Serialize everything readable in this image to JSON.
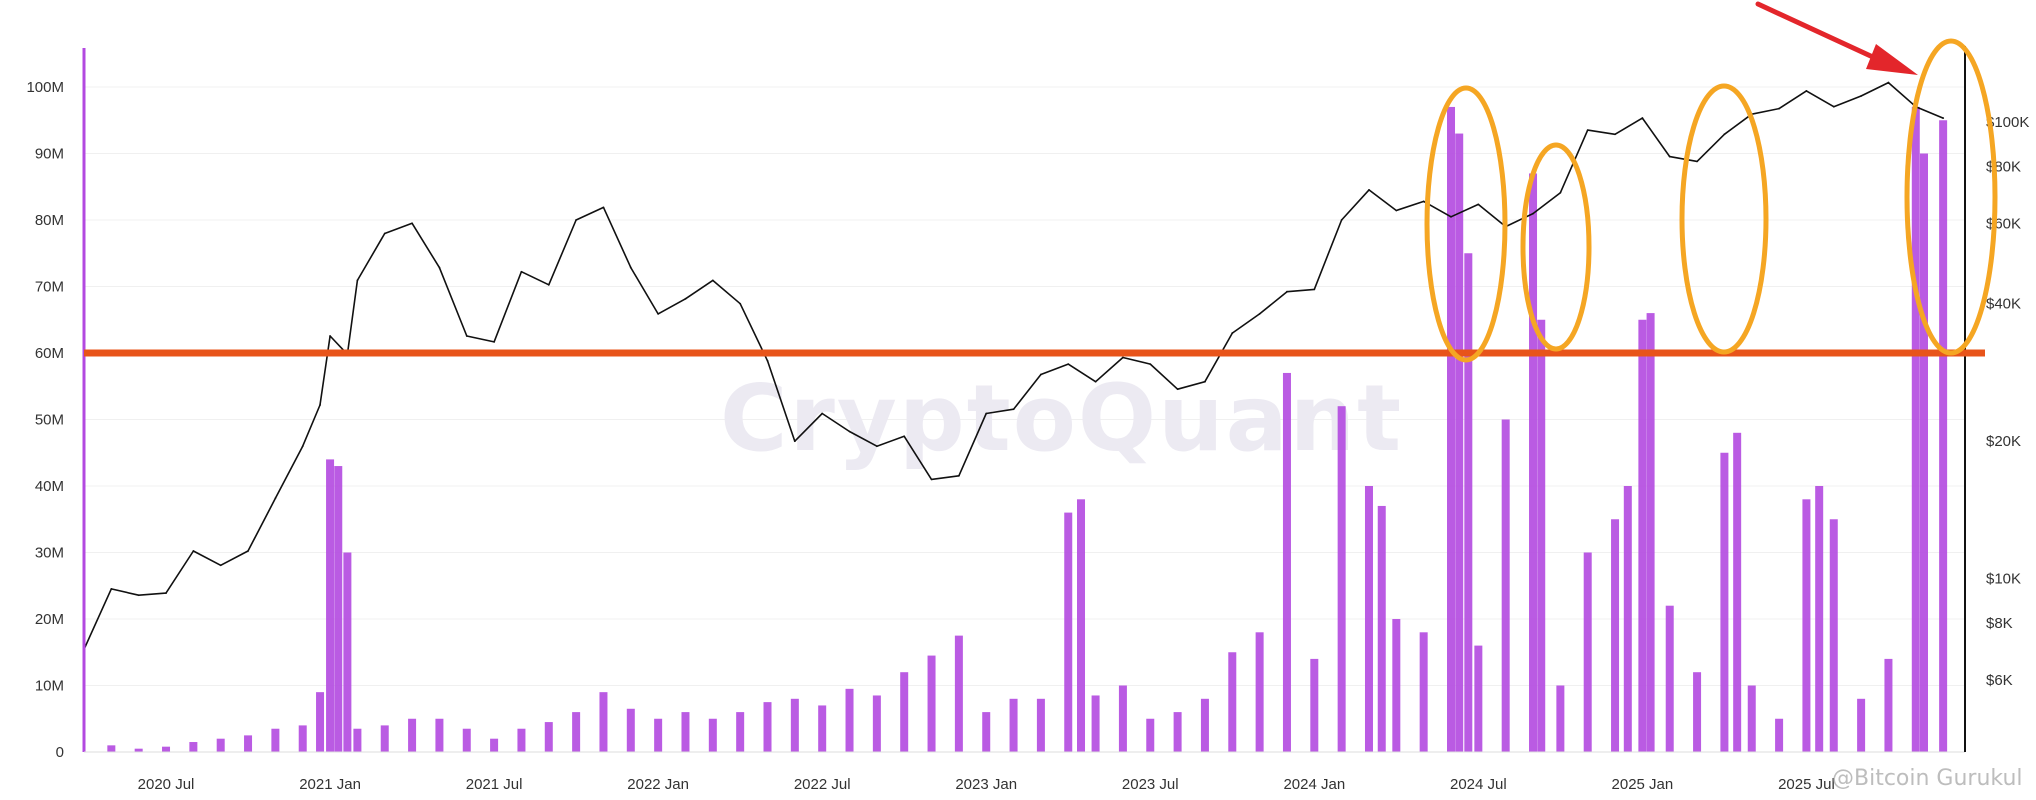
{
  "chart_data": {
    "type": "bar",
    "title": "",
    "xlabel": "",
    "ylabel": "",
    "x_tick_labels": [
      "2020 Jul",
      "2021 Jan",
      "2021 Jul",
      "2022 Jan",
      "2022 Jul",
      "2023 Jan",
      "2023 Jul",
      "2024 Jan",
      "2024 Jul",
      "2025 Jan",
      "2025 Jul"
    ],
    "x_range": [
      "2020 Apr",
      "2025 Dec"
    ],
    "left_axis": {
      "ticks": [
        0,
        10000000,
        20000000,
        30000000,
        40000000,
        50000000,
        60000000,
        70000000,
        80000000,
        90000000,
        100000000
      ],
      "tick_labels": [
        "0",
        "10M",
        "20M",
        "30M",
        "40M",
        "50M",
        "60M",
        "70M",
        "80M",
        "90M",
        "100M"
      ],
      "ylim": [
        0,
        100000000
      ]
    },
    "right_axis": {
      "scale": "log",
      "ticks": [
        6000,
        8000,
        10000,
        20000,
        40000,
        60000,
        80000,
        100000
      ],
      "tick_labels": [
        "$6K",
        "$8K",
        "$10K",
        "$20K",
        "$40K",
        "$60K",
        "$80K",
        "$100K"
      ]
    },
    "reference_line": {
      "value": 60000000,
      "color": "#e8541a"
    },
    "grid": true,
    "series": [
      {
        "kind": "bar",
        "axis": "left",
        "color": "#b349e0",
        "points": [
          [
            "2020 Apr",
            0
          ],
          [
            "2020 May",
            1000000
          ],
          [
            "2020 Jun",
            500000
          ],
          [
            "2020 Jul",
            800000
          ],
          [
            "2020 Aug",
            1500000
          ],
          [
            "2020 Sep",
            2000000
          ],
          [
            "2020 Oct",
            2500000
          ],
          [
            "2020 Nov",
            3500000
          ],
          [
            "2020 Dec",
            4000000
          ],
          [
            "2020 Dec 20",
            9000000
          ],
          [
            "2021 Jan",
            44000000
          ],
          [
            "2021 Jan 10",
            43000000
          ],
          [
            "2021 Jan 20",
            30000000
          ],
          [
            "2021 Feb",
            3500000
          ],
          [
            "2021 Mar",
            4000000
          ],
          [
            "2021 Apr",
            5000000
          ],
          [
            "2021 May",
            5000000
          ],
          [
            "2021 Jun",
            3500000
          ],
          [
            "2021 Jul",
            2000000
          ],
          [
            "2021 Aug",
            3500000
          ],
          [
            "2021 Sep",
            4500000
          ],
          [
            "2021 Oct",
            6000000
          ],
          [
            "2021 Nov",
            9000000
          ],
          [
            "2021 Dec",
            6500000
          ],
          [
            "2022 Jan",
            5000000
          ],
          [
            "2022 Feb",
            6000000
          ],
          [
            "2022 Mar",
            5000000
          ],
          [
            "2022 Apr",
            6000000
          ],
          [
            "2022 May",
            7500000
          ],
          [
            "2022 Jun",
            8000000
          ],
          [
            "2022 Jul",
            7000000
          ],
          [
            "2022 Aug",
            9500000
          ],
          [
            "2022 Sep",
            8500000
          ],
          [
            "2022 Oct",
            12000000
          ],
          [
            "2022 Nov",
            14500000
          ],
          [
            "2022 Dec",
            17500000
          ],
          [
            "2023 Jan",
            6000000
          ],
          [
            "2023 Feb",
            8000000
          ],
          [
            "2023 Mar",
            8000000
          ],
          [
            "2023 Apr",
            36000000
          ],
          [
            "2023 Apr 15",
            38000000
          ],
          [
            "2023 May",
            8500000
          ],
          [
            "2023 Jun",
            10000000
          ],
          [
            "2023 Jul",
            5000000
          ],
          [
            "2023 Aug",
            6000000
          ],
          [
            "2023 Sep",
            8000000
          ],
          [
            "2023 Oct",
            15000000
          ],
          [
            "2023 Nov",
            18000000
          ],
          [
            "2023 Dec",
            57000000
          ],
          [
            "2024 Jan",
            14000000
          ],
          [
            "2024 Feb",
            52000000
          ],
          [
            "2024 Mar",
            40000000
          ],
          [
            "2024 Mar 15",
            37000000
          ],
          [
            "2024 Apr",
            20000000
          ],
          [
            "2024 May",
            18000000
          ],
          [
            "2024 Jun",
            97000000
          ],
          [
            "2024 Jun 10",
            93000000
          ],
          [
            "2024 Jun 20",
            75000000
          ],
          [
            "2024 Jul",
            16000000
          ],
          [
            "2024 Aug",
            50000000
          ],
          [
            "2024 Sep",
            87000000
          ],
          [
            "2024 Sep 10",
            65000000
          ],
          [
            "2024 Oct",
            10000000
          ],
          [
            "2024 Nov",
            30000000
          ],
          [
            "2024 Dec",
            35000000
          ],
          [
            "2024 Dec 15",
            40000000
          ],
          [
            "2025 Jan",
            65000000
          ],
          [
            "2025 Jan 10",
            66000000
          ],
          [
            "2025 Feb",
            22000000
          ],
          [
            "2025 Mar",
            12000000
          ],
          [
            "2025 Apr",
            45000000
          ],
          [
            "2025 Apr 15",
            48000000
          ],
          [
            "2025 May",
            10000000
          ],
          [
            "2025 Jun",
            5000000
          ],
          [
            "2025 Jul",
            38000000
          ],
          [
            "2025 Jul 15",
            40000000
          ],
          [
            "2025 Aug",
            35000000
          ],
          [
            "2025 Sep",
            8000000
          ],
          [
            "2025 Oct",
            14000000
          ],
          [
            "2025 Nov",
            97000000
          ],
          [
            "2025 Nov 10",
            90000000
          ],
          [
            "2025 Dec",
            95000000
          ]
        ]
      },
      {
        "kind": "line",
        "axis": "right",
        "color": "#111111",
        "points": [
          [
            "2020 Apr",
            7000
          ],
          [
            "2020 May",
            9500
          ],
          [
            "2020 Jun",
            9200
          ],
          [
            "2020 Jul",
            9300
          ],
          [
            "2020 Aug",
            11500
          ],
          [
            "2020 Sep",
            10700
          ],
          [
            "2020 Oct",
            11500
          ],
          [
            "2020 Nov",
            15000
          ],
          [
            "2020 Dec",
            19500
          ],
          [
            "2020 Dec 20",
            24000
          ],
          [
            "2021 Jan",
            34000
          ],
          [
            "2021 Jan 20",
            31000
          ],
          [
            "2021 Feb",
            45000
          ],
          [
            "2021 Mar",
            57000
          ],
          [
            "2021 Apr",
            60000
          ],
          [
            "2021 May",
            48000
          ],
          [
            "2021 Jun",
            34000
          ],
          [
            "2021 Jul",
            33000
          ],
          [
            "2021 Aug",
            47000
          ],
          [
            "2021 Sep",
            44000
          ],
          [
            "2021 Oct",
            61000
          ],
          [
            "2021 Nov",
            65000
          ],
          [
            "2021 Dec",
            48000
          ],
          [
            "2022 Jan",
            38000
          ],
          [
            "2022 Feb",
            41000
          ],
          [
            "2022 Mar",
            45000
          ],
          [
            "2022 Apr",
            40000
          ],
          [
            "2022 May",
            30000
          ],
          [
            "2022 Jun",
            20000
          ],
          [
            "2022 Jul",
            23000
          ],
          [
            "2022 Aug",
            21000
          ],
          [
            "2022 Sep",
            19500
          ],
          [
            "2022 Oct",
            20500
          ],
          [
            "2022 Nov",
            16500
          ],
          [
            "2022 Dec",
            16800
          ],
          [
            "2023 Jan",
            23000
          ],
          [
            "2023 Feb",
            23500
          ],
          [
            "2023 Mar",
            28000
          ],
          [
            "2023 Apr",
            29500
          ],
          [
            "2023 May",
            27000
          ],
          [
            "2023 Jun",
            30500
          ],
          [
            "2023 Jul",
            29500
          ],
          [
            "2023 Aug",
            26000
          ],
          [
            "2023 Sep",
            27000
          ],
          [
            "2023 Oct",
            34500
          ],
          [
            "2023 Nov",
            38000
          ],
          [
            "2023 Dec",
            42500
          ],
          [
            "2024 Jan",
            43000
          ],
          [
            "2024 Feb",
            61000
          ],
          [
            "2024 Mar",
            71000
          ],
          [
            "2024 Apr",
            64000
          ],
          [
            "2024 May",
            67000
          ],
          [
            "2024 Jun",
            62000
          ],
          [
            "2024 Jul",
            66000
          ],
          [
            "2024 Aug",
            59000
          ],
          [
            "2024 Sep",
            63000
          ],
          [
            "2024 Oct",
            70000
          ],
          [
            "2024 Nov",
            96000
          ],
          [
            "2024 Dec",
            94000
          ],
          [
            "2025 Jan",
            102000
          ],
          [
            "2025 Feb",
            84000
          ],
          [
            "2025 Mar",
            82000
          ],
          [
            "2025 Apr",
            94000
          ],
          [
            "2025 May",
            104000
          ],
          [
            "2025 Jun",
            107000
          ],
          [
            "2025 Jul",
            117000
          ],
          [
            "2025 Aug",
            108000
          ],
          [
            "2025 Sep",
            114000
          ],
          [
            "2025 Oct",
            122000
          ],
          [
            "2025 Nov",
            108000
          ],
          [
            "2025 Dec",
            102000
          ]
        ]
      }
    ]
  },
  "overlay": {
    "watermark": "CryptoQuant",
    "credit": "@Bitcoin Gurukul",
    "highlight_color": "#f5a623",
    "arrow_color": "#e3262b"
  }
}
